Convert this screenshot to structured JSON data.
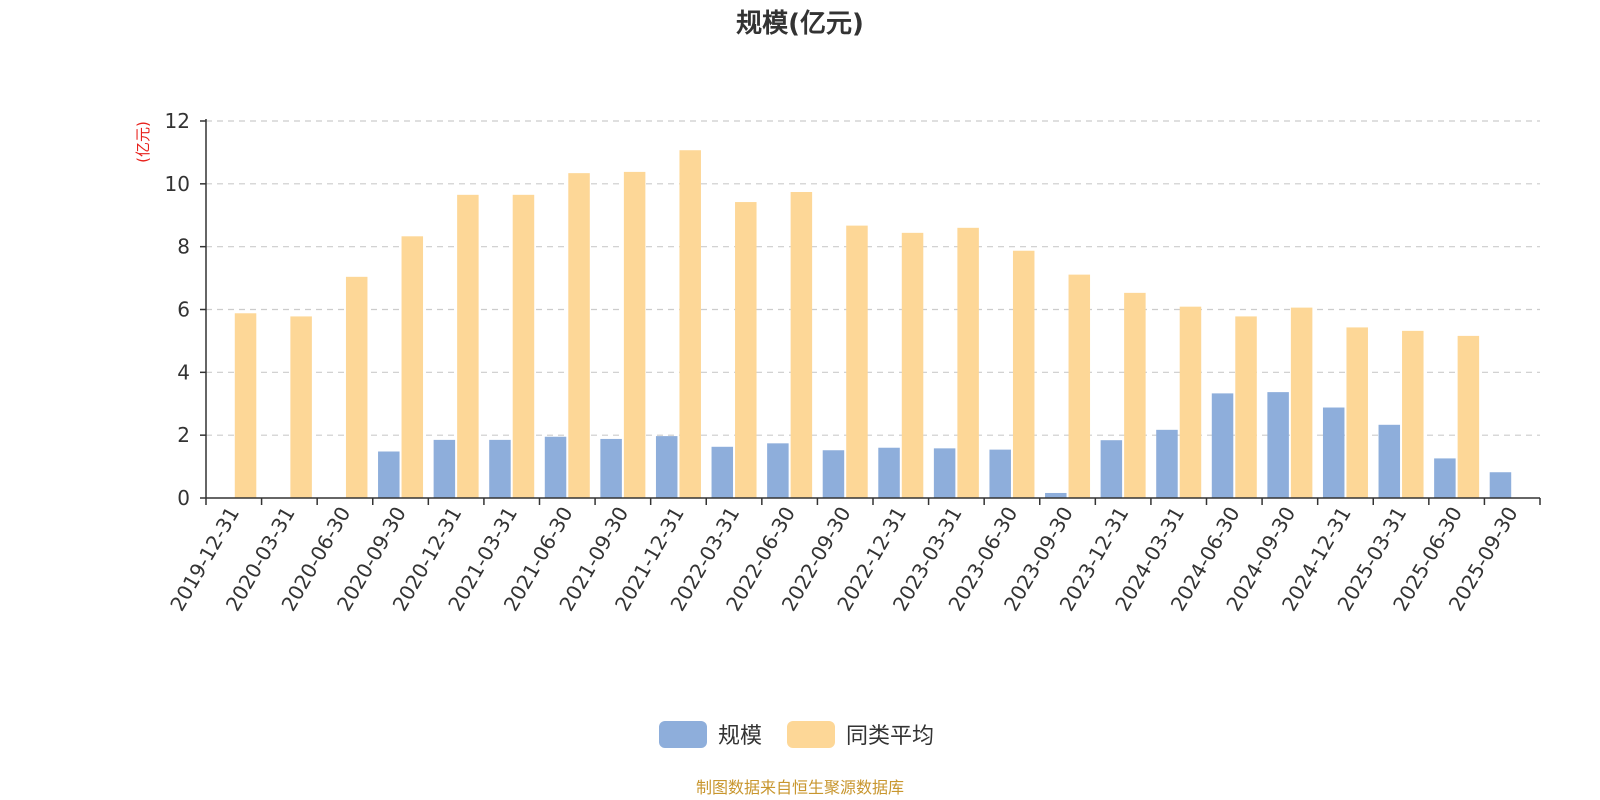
{
  "chart_data": {
    "type": "bar",
    "title": "规模(亿元)",
    "y_unit_label": "(亿元)",
    "ylim": [
      0,
      12
    ],
    "y_ticks": [
      0,
      2,
      4,
      6,
      8,
      10,
      12
    ],
    "grid": true,
    "legend_position": "bottom-center",
    "categories": [
      "2019-12-31",
      "2020-03-31",
      "2020-06-30",
      "2020-09-30",
      "2020-12-31",
      "2021-03-31",
      "2021-06-30",
      "2021-09-30",
      "2021-12-31",
      "2022-03-31",
      "2022-06-30",
      "2022-09-30",
      "2022-12-31",
      "2023-03-31",
      "2023-06-30",
      "2023-09-30",
      "2023-12-31",
      "2024-03-31",
      "2024-06-30",
      "2024-09-30",
      "2024-12-31",
      "2025-03-31",
      "2025-06-30",
      "2025-09-30"
    ],
    "series": [
      {
        "name": "规模",
        "color": "#8EAEDB",
        "values": [
          null,
          null,
          null,
          1.48,
          1.85,
          1.85,
          1.95,
          1.88,
          1.97,
          1.63,
          1.74,
          1.52,
          1.6,
          1.58,
          1.54,
          0.16,
          1.84,
          2.17,
          3.33,
          3.37,
          2.88,
          2.33,
          1.26,
          0.82
        ]
      },
      {
        "name": "同类平均",
        "color": "#FDD797",
        "values": [
          5.88,
          5.78,
          7.04,
          8.33,
          9.65,
          9.65,
          10.34,
          10.38,
          11.07,
          9.42,
          9.74,
          8.67,
          8.44,
          8.6,
          7.87,
          7.11,
          6.53,
          6.09,
          5.78,
          6.06,
          5.43,
          5.32,
          5.16,
          null
        ]
      }
    ]
  },
  "source_note": "制图数据来自恒生聚源数据库",
  "colors": {
    "axis": "#333333",
    "grid": "#CCCCCC",
    "unit_label": "#E8211C",
    "source_note": "#C8962E"
  }
}
